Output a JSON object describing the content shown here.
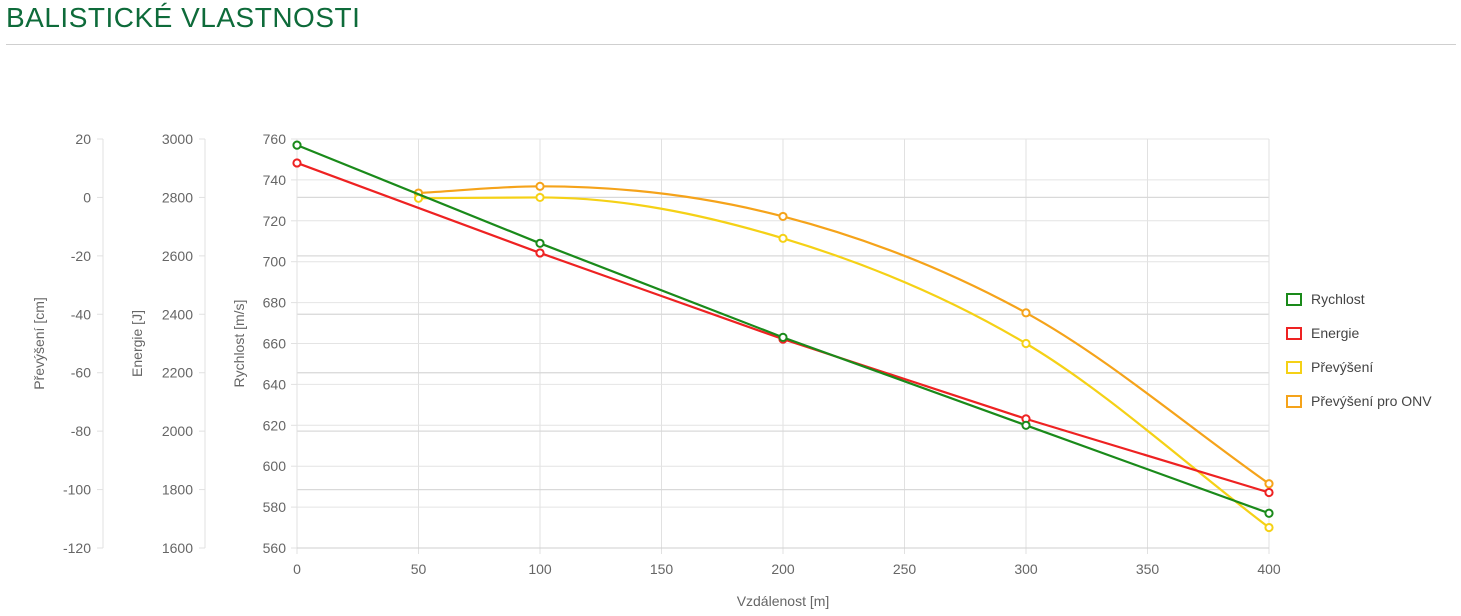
{
  "page": {
    "title": "BALISTICKÉ VLASTNOSTI"
  },
  "colors": {
    "title": "#0e6b3a",
    "rychlost": "#1a8a1a",
    "energie": "#ee2222",
    "prevyseni": "#f5d116",
    "prevyseni_onv": "#f5a31a"
  },
  "chart_data": {
    "type": "line",
    "xlabel": "Vzdálenost [m]",
    "x_ticks": [
      "0",
      "50",
      "100",
      "150",
      "200",
      "250",
      "300",
      "350",
      "400"
    ],
    "xlim": [
      0,
      400
    ],
    "grid": true,
    "legend_position": "right",
    "axes": [
      {
        "id": "prevyseni",
        "label": "Převýšení [cm]",
        "ylim": [
          -120,
          20
        ],
        "ticks": [
          "20",
          "0",
          "-20",
          "-40",
          "-60",
          "-80",
          "-100",
          "-120"
        ]
      },
      {
        "id": "energie",
        "label": "Energie [J]",
        "ylim": [
          1600,
          3000
        ],
        "ticks": [
          "3000",
          "2800",
          "2600",
          "2400",
          "2200",
          "2000",
          "1800",
          "1600"
        ]
      },
      {
        "id": "rychlost",
        "label": "Rychlost [m/s]",
        "ylim": [
          560,
          760
        ],
        "ticks": [
          "760",
          "740",
          "720",
          "700",
          "680",
          "660",
          "640",
          "620",
          "600",
          "580",
          "560"
        ]
      }
    ],
    "series": [
      {
        "name": "Rychlost",
        "axis": "rychlost",
        "color": "#1a8a1a",
        "smooth": false,
        "x": [
          0,
          100,
          200,
          300,
          400
        ],
        "y": [
          757,
          709,
          663,
          620,
          577
        ]
      },
      {
        "name": "Energie",
        "axis": "energie",
        "color": "#ee2222",
        "smooth": false,
        "x": [
          0,
          100,
          200,
          300,
          400
        ],
        "y": [
          2918,
          2610,
          2315,
          2042,
          1790
        ]
      },
      {
        "name": "Převýšení",
        "axis": "prevyseni",
        "color": "#f5d116",
        "smooth": true,
        "x": [
          50,
          100,
          200,
          300,
          400
        ],
        "y": [
          -0.3,
          0,
          -14,
          -50,
          -113
        ]
      },
      {
        "name": "Převýšení pro ONV",
        "axis": "prevyseni",
        "color": "#f5a31a",
        "smooth": true,
        "x": [
          50,
          100,
          200,
          300,
          400
        ],
        "y": [
          1.5,
          3.8,
          -6.5,
          -39.5,
          -98
        ]
      }
    ]
  }
}
